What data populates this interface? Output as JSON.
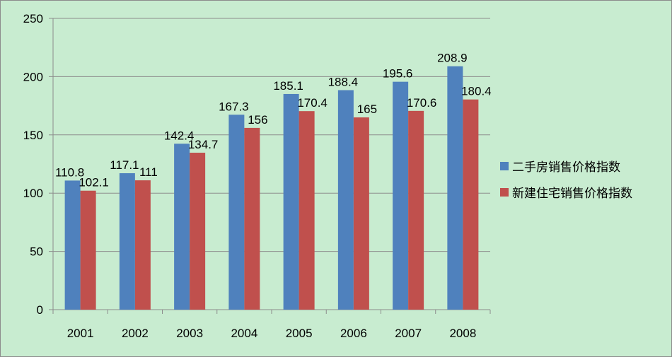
{
  "chart_data": {
    "type": "bar",
    "categories": [
      "2001",
      "2002",
      "2003",
      "2004",
      "2005",
      "2006",
      "2007",
      "2008"
    ],
    "series": [
      {
        "name": "二手房销售价格指数",
        "color": "#4f81bd",
        "values": [
          110.8,
          117.1,
          142.4,
          167.3,
          185.1,
          188.4,
          195.6,
          208.9
        ],
        "labels": [
          "110.8",
          "117.1",
          "142.4",
          "167.3",
          "185.1",
          "188.4",
          "195.6",
          "208.9"
        ]
      },
      {
        "name": "新建住宅销售价格指数",
        "color": "#c0504d",
        "values": [
          102.1,
          111,
          134.7,
          156,
          170.4,
          165,
          170.6,
          180.4
        ],
        "labels": [
          "102.1",
          "111",
          "134.7",
          "156",
          "170.4",
          "165",
          "170.6",
          "180.4"
        ]
      }
    ],
    "yticks": [
      "0",
      "50",
      "100",
      "150",
      "200",
      "250"
    ],
    "ylim": [
      0,
      250
    ],
    "grid": true,
    "legend_position": "right",
    "background_color": "#c8ecd0"
  }
}
